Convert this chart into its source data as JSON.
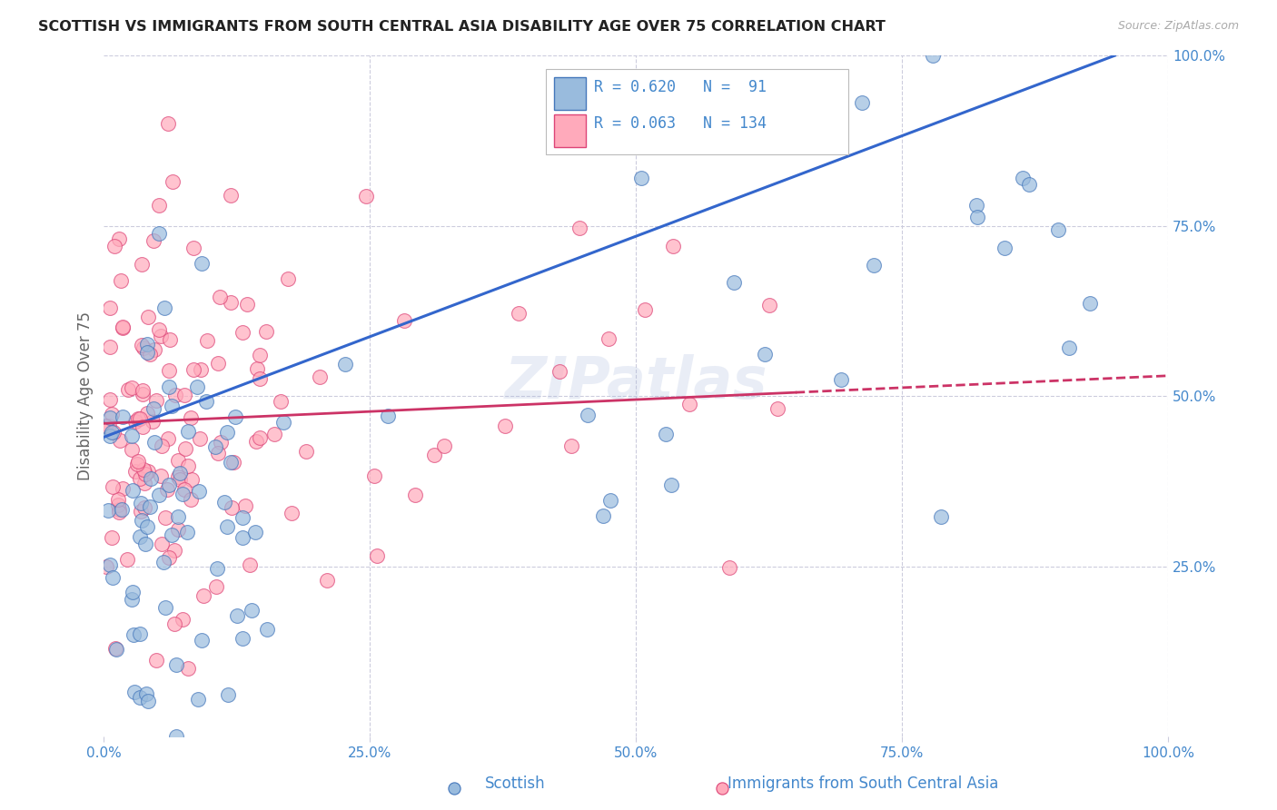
{
  "title": "SCOTTISH VS IMMIGRANTS FROM SOUTH CENTRAL ASIA DISABILITY AGE OVER 75 CORRELATION CHART",
  "source": "Source: ZipAtlas.com",
  "ylabel": "Disability Age Over 75",
  "legend_bottom": [
    "Scottish",
    "Immigrants from South Central Asia"
  ],
  "r_scottish": 0.62,
  "n_scottish": 91,
  "r_immigrants": 0.063,
  "n_immigrants": 134,
  "color_scottish_fill": "#99BBDD",
  "color_scottish_edge": "#4477BB",
  "color_immigrants_fill": "#FFAABB",
  "color_immigrants_edge": "#DD4477",
  "color_line_scottish": "#3366CC",
  "color_line_immigrants": "#CC3366",
  "watermark": "ZIPatlas",
  "background_color": "#FFFFFF",
  "grid_color": "#CCCCDD",
  "title_color": "#222222",
  "axis_color": "#4488CC",
  "ylabel_color": "#666666",
  "source_color": "#AAAAAA"
}
